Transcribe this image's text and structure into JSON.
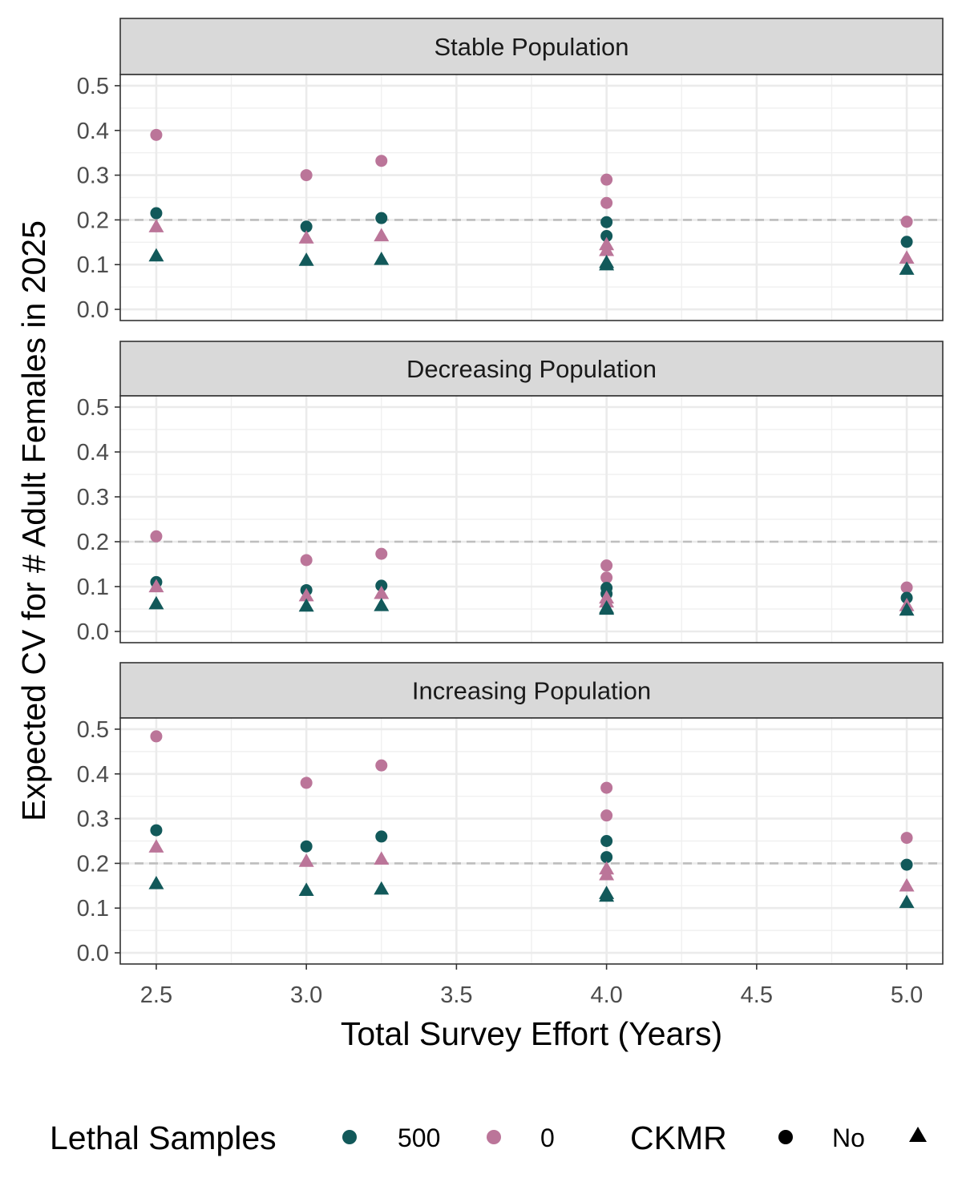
{
  "chart_data": {
    "type": "scatter",
    "facets": [
      "Stable Population",
      "Decreasing Population",
      "Increasing Population"
    ],
    "xlabel": "Total Survey Effort (Years)",
    "ylabel": "Expected CV for # Adult Females in 2025",
    "x_ticks": [
      "2.5",
      "3.0",
      "3.5",
      "4.0",
      "4.5",
      "5.0"
    ],
    "y_ticks": [
      "0.0",
      "0.1",
      "0.2",
      "0.3",
      "0.4",
      "0.5"
    ],
    "xlim": [
      2.38,
      5.12
    ],
    "ylim": [
      -0.025,
      0.525
    ],
    "reference_line": 0.2,
    "grid": true,
    "legend_position": "bottom",
    "colors": {
      "500": "#12595a",
      "0": "#bb7599"
    },
    "legend": {
      "lethal_title": "Lethal Samples",
      "lethal_items": [
        {
          "label": "500",
          "color": "#12595a"
        },
        {
          "label": "0",
          "color": "#bb7599"
        }
      ],
      "ckmr_title": "CKMR",
      "ckmr_items": [
        {
          "label": "No",
          "shape": "circle"
        },
        {
          "label": "",
          "shape": "triangle"
        }
      ]
    },
    "panels": [
      {
        "name": "Stable Population",
        "points": [
          {
            "x": 2.5,
            "y": 0.39,
            "lethal": "0",
            "shape": "circle"
          },
          {
            "x": 2.5,
            "y": 0.215,
            "lethal": "500",
            "shape": "circle"
          },
          {
            "x": 2.5,
            "y": 0.185,
            "lethal": "0",
            "shape": "triangle"
          },
          {
            "x": 2.5,
            "y": 0.12,
            "lethal": "500",
            "shape": "triangle"
          },
          {
            "x": 3.0,
            "y": 0.3,
            "lethal": "0",
            "shape": "circle"
          },
          {
            "x": 3.0,
            "y": 0.185,
            "lethal": "500",
            "shape": "circle"
          },
          {
            "x": 3.0,
            "y": 0.16,
            "lethal": "0",
            "shape": "triangle"
          },
          {
            "x": 3.0,
            "y": 0.11,
            "lethal": "500",
            "shape": "triangle"
          },
          {
            "x": 3.25,
            "y": 0.332,
            "lethal": "0",
            "shape": "circle"
          },
          {
            "x": 3.25,
            "y": 0.204,
            "lethal": "500",
            "shape": "circle"
          },
          {
            "x": 3.25,
            "y": 0.165,
            "lethal": "0",
            "shape": "triangle"
          },
          {
            "x": 3.25,
            "y": 0.112,
            "lethal": "500",
            "shape": "triangle"
          },
          {
            "x": 4.0,
            "y": 0.29,
            "lethal": "0",
            "shape": "circle"
          },
          {
            "x": 4.0,
            "y": 0.238,
            "lethal": "0",
            "shape": "circle"
          },
          {
            "x": 4.0,
            "y": 0.195,
            "lethal": "500",
            "shape": "circle"
          },
          {
            "x": 4.0,
            "y": 0.164,
            "lethal": "500",
            "shape": "circle"
          },
          {
            "x": 4.0,
            "y": 0.145,
            "lethal": "0",
            "shape": "triangle"
          },
          {
            "x": 4.0,
            "y": 0.132,
            "lethal": "0",
            "shape": "triangle"
          },
          {
            "x": 4.0,
            "y": 0.105,
            "lethal": "500",
            "shape": "triangle"
          },
          {
            "x": 4.0,
            "y": 0.1,
            "lethal": "500",
            "shape": "triangle"
          },
          {
            "x": 5.0,
            "y": 0.196,
            "lethal": "0",
            "shape": "circle"
          },
          {
            "x": 5.0,
            "y": 0.151,
            "lethal": "500",
            "shape": "circle"
          },
          {
            "x": 5.0,
            "y": 0.115,
            "lethal": "0",
            "shape": "triangle"
          },
          {
            "x": 5.0,
            "y": 0.09,
            "lethal": "500",
            "shape": "triangle"
          }
        ]
      },
      {
        "name": "Decreasing Population",
        "points": [
          {
            "x": 2.5,
            "y": 0.212,
            "lethal": "0",
            "shape": "circle"
          },
          {
            "x": 2.5,
            "y": 0.11,
            "lethal": "500",
            "shape": "circle"
          },
          {
            "x": 2.5,
            "y": 0.1,
            "lethal": "0",
            "shape": "triangle"
          },
          {
            "x": 2.5,
            "y": 0.062,
            "lethal": "500",
            "shape": "triangle"
          },
          {
            "x": 3.0,
            "y": 0.159,
            "lethal": "0",
            "shape": "circle"
          },
          {
            "x": 3.0,
            "y": 0.092,
            "lethal": "500",
            "shape": "circle"
          },
          {
            "x": 3.0,
            "y": 0.08,
            "lethal": "0",
            "shape": "triangle"
          },
          {
            "x": 3.0,
            "y": 0.057,
            "lethal": "500",
            "shape": "triangle"
          },
          {
            "x": 3.25,
            "y": 0.173,
            "lethal": "0",
            "shape": "circle"
          },
          {
            "x": 3.25,
            "y": 0.102,
            "lethal": "500",
            "shape": "circle"
          },
          {
            "x": 3.25,
            "y": 0.085,
            "lethal": "0",
            "shape": "triangle"
          },
          {
            "x": 3.25,
            "y": 0.058,
            "lethal": "500",
            "shape": "triangle"
          },
          {
            "x": 4.0,
            "y": 0.147,
            "lethal": "0",
            "shape": "circle"
          },
          {
            "x": 4.0,
            "y": 0.12,
            "lethal": "0",
            "shape": "circle"
          },
          {
            "x": 4.0,
            "y": 0.097,
            "lethal": "500",
            "shape": "circle"
          },
          {
            "x": 4.0,
            "y": 0.084,
            "lethal": "500",
            "shape": "circle"
          },
          {
            "x": 4.0,
            "y": 0.075,
            "lethal": "0",
            "shape": "triangle"
          },
          {
            "x": 4.0,
            "y": 0.066,
            "lethal": "0",
            "shape": "triangle"
          },
          {
            "x": 4.0,
            "y": 0.053,
            "lethal": "500",
            "shape": "triangle"
          },
          {
            "x": 4.0,
            "y": 0.05,
            "lethal": "500",
            "shape": "triangle"
          },
          {
            "x": 5.0,
            "y": 0.098,
            "lethal": "0",
            "shape": "circle"
          },
          {
            "x": 5.0,
            "y": 0.075,
            "lethal": "500",
            "shape": "circle"
          },
          {
            "x": 5.0,
            "y": 0.058,
            "lethal": "0",
            "shape": "triangle"
          },
          {
            "x": 5.0,
            "y": 0.048,
            "lethal": "500",
            "shape": "triangle"
          }
        ]
      },
      {
        "name": "Increasing Population",
        "points": [
          {
            "x": 2.5,
            "y": 0.484,
            "lethal": "0",
            "shape": "circle"
          },
          {
            "x": 2.5,
            "y": 0.274,
            "lethal": "500",
            "shape": "circle"
          },
          {
            "x": 2.5,
            "y": 0.237,
            "lethal": "0",
            "shape": "triangle"
          },
          {
            "x": 2.5,
            "y": 0.155,
            "lethal": "500",
            "shape": "triangle"
          },
          {
            "x": 3.0,
            "y": 0.38,
            "lethal": "0",
            "shape": "circle"
          },
          {
            "x": 3.0,
            "y": 0.238,
            "lethal": "500",
            "shape": "circle"
          },
          {
            "x": 3.0,
            "y": 0.205,
            "lethal": "0",
            "shape": "triangle"
          },
          {
            "x": 3.0,
            "y": 0.14,
            "lethal": "500",
            "shape": "triangle"
          },
          {
            "x": 3.25,
            "y": 0.419,
            "lethal": "0",
            "shape": "circle"
          },
          {
            "x": 3.25,
            "y": 0.26,
            "lethal": "500",
            "shape": "circle"
          },
          {
            "x": 3.25,
            "y": 0.21,
            "lethal": "0",
            "shape": "triangle"
          },
          {
            "x": 3.25,
            "y": 0.143,
            "lethal": "500",
            "shape": "triangle"
          },
          {
            "x": 4.0,
            "y": 0.369,
            "lethal": "0",
            "shape": "circle"
          },
          {
            "x": 4.0,
            "y": 0.307,
            "lethal": "0",
            "shape": "circle"
          },
          {
            "x": 4.0,
            "y": 0.25,
            "lethal": "500",
            "shape": "circle"
          },
          {
            "x": 4.0,
            "y": 0.214,
            "lethal": "500",
            "shape": "circle"
          },
          {
            "x": 4.0,
            "y": 0.188,
            "lethal": "0",
            "shape": "triangle"
          },
          {
            "x": 4.0,
            "y": 0.175,
            "lethal": "0",
            "shape": "triangle"
          },
          {
            "x": 4.0,
            "y": 0.133,
            "lethal": "500",
            "shape": "triangle"
          },
          {
            "x": 4.0,
            "y": 0.127,
            "lethal": "500",
            "shape": "triangle"
          },
          {
            "x": 5.0,
            "y": 0.257,
            "lethal": "0",
            "shape": "circle"
          },
          {
            "x": 5.0,
            "y": 0.197,
            "lethal": "500",
            "shape": "circle"
          },
          {
            "x": 5.0,
            "y": 0.15,
            "lethal": "0",
            "shape": "triangle"
          },
          {
            "x": 5.0,
            "y": 0.113,
            "lethal": "500",
            "shape": "triangle"
          }
        ]
      }
    ]
  }
}
